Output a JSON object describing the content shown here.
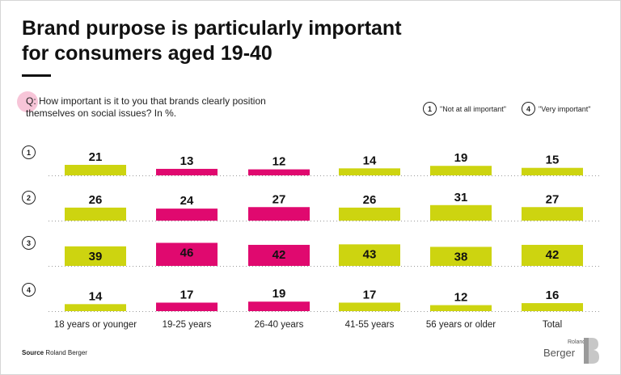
{
  "header": {
    "title_line1": "Brand purpose is particularly important",
    "title_line2": "for consumers aged 19-40"
  },
  "question": {
    "prefix": "Q:",
    "text": "How important is it to you that brands clearly position themselves on social issues? In %."
  },
  "legend": {
    "low_num": "1",
    "low_label": "\"Not at all important\"",
    "high_num": "4",
    "high_label": "\"Very important\""
  },
  "footer": {
    "source_label": "Source",
    "source_text": "Roland Berger",
    "logo_small": "Roland",
    "logo_big": "Berger"
  },
  "colors": {
    "green": "#cdd410",
    "pink": "#e0096f",
    "dotted": "#999999"
  },
  "chart_data": {
    "type": "bar",
    "title": "Brand purpose is particularly important for consumers aged 19-40",
    "categories": [
      "18 years or younger",
      "19-25 years",
      "26-40 years",
      "41-55 years",
      "56 years or older",
      "Total"
    ],
    "highlight": [
      false,
      true,
      true,
      false,
      false,
      false
    ],
    "rows": [
      {
        "label": "1",
        "values": [
          21,
          13,
          12,
          14,
          19,
          15
        ]
      },
      {
        "label": "2",
        "values": [
          26,
          24,
          27,
          26,
          31,
          27
        ]
      },
      {
        "label": "3",
        "values": [
          39,
          46,
          42,
          43,
          38,
          42
        ]
      },
      {
        "label": "4",
        "values": [
          14,
          17,
          19,
          17,
          12,
          16
        ]
      }
    ],
    "unit": "%"
  }
}
